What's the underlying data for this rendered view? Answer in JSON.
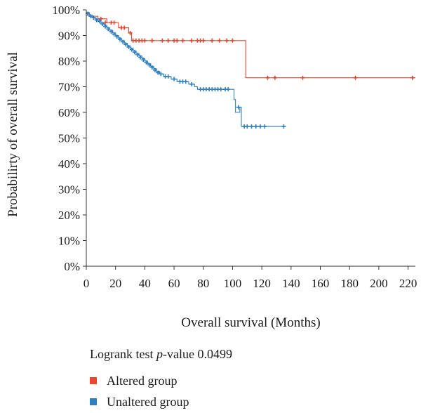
{
  "chart_data": {
    "type": "line",
    "subtype": "kaplan-meier",
    "title": "",
    "xlabel": "Overall survival (Months)",
    "ylabel": "Probabilirty of overall survival",
    "xlim": [
      0,
      225
    ],
    "ylim": [
      0,
      100
    ],
    "x_ticks": [
      0,
      20,
      40,
      60,
      80,
      100,
      120,
      140,
      160,
      180,
      200,
      220
    ],
    "y_ticks": [
      "0%",
      "10%",
      "20%",
      "30%",
      "40%",
      "50%",
      "60%",
      "70%",
      "80%",
      "90%",
      "100%"
    ],
    "y_tick_values": [
      0,
      10,
      20,
      30,
      40,
      50,
      60,
      70,
      80,
      90,
      100
    ],
    "grid": false,
    "legend_position": "bottom-left",
    "series": [
      {
        "name": "Altered group",
        "color": "#e8462f",
        "steps": [
          [
            0,
            98
          ],
          [
            2,
            97.5
          ],
          [
            8,
            96.5
          ],
          [
            14,
            95
          ],
          [
            22,
            93
          ],
          [
            29,
            91
          ],
          [
            31,
            88
          ],
          [
            108,
            88
          ],
          [
            109,
            73.5
          ],
          [
            225,
            73.5
          ]
        ],
        "censored": [
          [
            5,
            97
          ],
          [
            10,
            96.5
          ],
          [
            13,
            95
          ],
          [
            17,
            95
          ],
          [
            19,
            95
          ],
          [
            24,
            93
          ],
          [
            26,
            93
          ],
          [
            30,
            91
          ],
          [
            32,
            88
          ],
          [
            34,
            88
          ],
          [
            36,
            88
          ],
          [
            38,
            88
          ],
          [
            40,
            88
          ],
          [
            45,
            88
          ],
          [
            52,
            88
          ],
          [
            56,
            88
          ],
          [
            60,
            88
          ],
          [
            62,
            88
          ],
          [
            66,
            88
          ],
          [
            72,
            88
          ],
          [
            76,
            88
          ],
          [
            78,
            88
          ],
          [
            80,
            88
          ],
          [
            86,
            88
          ],
          [
            91,
            88
          ],
          [
            96,
            88
          ],
          [
            100,
            88
          ],
          [
            124,
            73.5
          ],
          [
            129,
            73.5
          ],
          [
            148,
            73.5
          ],
          [
            184,
            73.5
          ],
          [
            223,
            73.5
          ]
        ]
      },
      {
        "name": "Unaltered group",
        "color": "#2e7fc1",
        "steps": [
          [
            0,
            99
          ],
          [
            2,
            98
          ],
          [
            4,
            97
          ],
          [
            6,
            96.5
          ],
          [
            8,
            96
          ],
          [
            10,
            95
          ],
          [
            12,
            94
          ],
          [
            14,
            93
          ],
          [
            16,
            92
          ],
          [
            18,
            91
          ],
          [
            20,
            90
          ],
          [
            22,
            89
          ],
          [
            24,
            88
          ],
          [
            26,
            87
          ],
          [
            28,
            86
          ],
          [
            30,
            85
          ],
          [
            32,
            84
          ],
          [
            34,
            83
          ],
          [
            36,
            82
          ],
          [
            38,
            81
          ],
          [
            40,
            80
          ],
          [
            42,
            79
          ],
          [
            44,
            78
          ],
          [
            46,
            77
          ],
          [
            48,
            76
          ],
          [
            50,
            75
          ],
          [
            53,
            74
          ],
          [
            58,
            73
          ],
          [
            62,
            72
          ],
          [
            70,
            71
          ],
          [
            74,
            70
          ],
          [
            76,
            69
          ],
          [
            101,
            65
          ],
          [
            102,
            60
          ],
          [
            105,
            62
          ],
          [
            106,
            54.5
          ],
          [
            135,
            54.5
          ]
        ],
        "censored": [
          [
            1,
            98.5
          ],
          [
            3,
            97.5
          ],
          [
            5,
            97
          ],
          [
            7,
            96
          ],
          [
            9,
            95.5
          ],
          [
            11,
            94.5
          ],
          [
            13,
            93.5
          ],
          [
            15,
            92.5
          ],
          [
            17,
            91.5
          ],
          [
            19,
            90.5
          ],
          [
            21,
            89.5
          ],
          [
            23,
            88.5
          ],
          [
            25,
            87.5
          ],
          [
            27,
            86.5
          ],
          [
            29,
            85.5
          ],
          [
            31,
            84.5
          ],
          [
            33,
            83.5
          ],
          [
            35,
            82.5
          ],
          [
            37,
            81.5
          ],
          [
            39,
            80.5
          ],
          [
            41,
            79.5
          ],
          [
            43,
            78.5
          ],
          [
            45,
            77.5
          ],
          [
            47,
            76.5
          ],
          [
            49,
            75.5
          ],
          [
            51,
            75
          ],
          [
            54,
            74
          ],
          [
            56,
            74
          ],
          [
            60,
            73
          ],
          [
            64,
            72
          ],
          [
            66,
            72
          ],
          [
            68,
            72
          ],
          [
            72,
            71
          ],
          [
            78,
            69
          ],
          [
            80,
            69
          ],
          [
            82,
            69
          ],
          [
            84,
            69
          ],
          [
            86,
            69
          ],
          [
            88,
            69
          ],
          [
            90,
            69
          ],
          [
            92,
            69
          ],
          [
            95,
            69
          ],
          [
            97,
            69
          ],
          [
            104,
            62
          ],
          [
            108,
            54.5
          ],
          [
            110,
            54.5
          ],
          [
            113,
            54.5
          ],
          [
            116,
            54.5
          ],
          [
            119,
            54.5
          ],
          [
            122,
            54.5
          ],
          [
            135,
            54.5
          ]
        ]
      }
    ],
    "annotation": {
      "prefix": "Logrank test ",
      "italic": "p",
      "suffix": "-value 0.0499"
    }
  },
  "legend": {
    "entries": [
      {
        "name": "Altered group",
        "color": "#e8462f"
      },
      {
        "name": "Unaltered group",
        "color": "#2e7fc1"
      }
    ]
  }
}
